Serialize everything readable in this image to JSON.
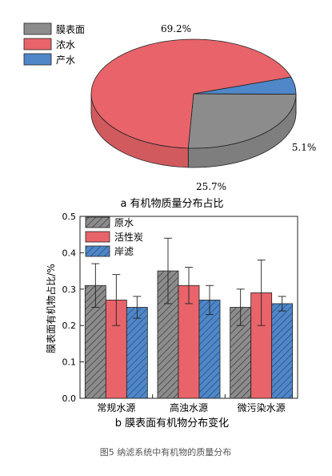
{
  "chart_data": [
    {
      "type": "pie",
      "title": "a 有机物质量分布占比",
      "legend_position": "top-left",
      "labels": [
        "膜表面",
        "浓水",
        "产水"
      ],
      "values": [
        25.7,
        69.2,
        5.1
      ],
      "value_labels": [
        "25.7%",
        "69.2%",
        "5.1%"
      ],
      "colors": [
        "#8c8c8c",
        "#e8646a",
        "#4f87c8"
      ]
    },
    {
      "type": "bar",
      "title": "b 膜表面有机物分布变化",
      "xlabel": "",
      "ylabel": "膜表面有机物占比/%",
      "ylim": [
        0.0,
        0.5
      ],
      "yticks": [
        "0.0",
        "0.1",
        "0.2",
        "0.3",
        "0.4",
        "0.5"
      ],
      "grid": false,
      "legend_position": "top-left",
      "categories": [
        "常规水源",
        "高浊水源",
        "微污染水源"
      ],
      "series": [
        {
          "name": "原水",
          "values": [
            0.31,
            0.35,
            0.25
          ],
          "errors": [
            0.06,
            0.09,
            0.05
          ],
          "color": "#8c8c8c",
          "pattern": "hatch"
        },
        {
          "name": "活性炭",
          "values": [
            0.27,
            0.31,
            0.29
          ],
          "errors": [
            0.07,
            0.05,
            0.09
          ],
          "color": "#e8646a",
          "pattern": "solid"
        },
        {
          "name": "岸滤",
          "values": [
            0.25,
            0.27,
            0.26
          ],
          "errors": [
            0.03,
            0.04,
            0.02
          ],
          "color": "#4f87c8",
          "pattern": "hatch"
        }
      ]
    }
  ],
  "caption": "图5 纳滤系统中有机物的质量分布"
}
